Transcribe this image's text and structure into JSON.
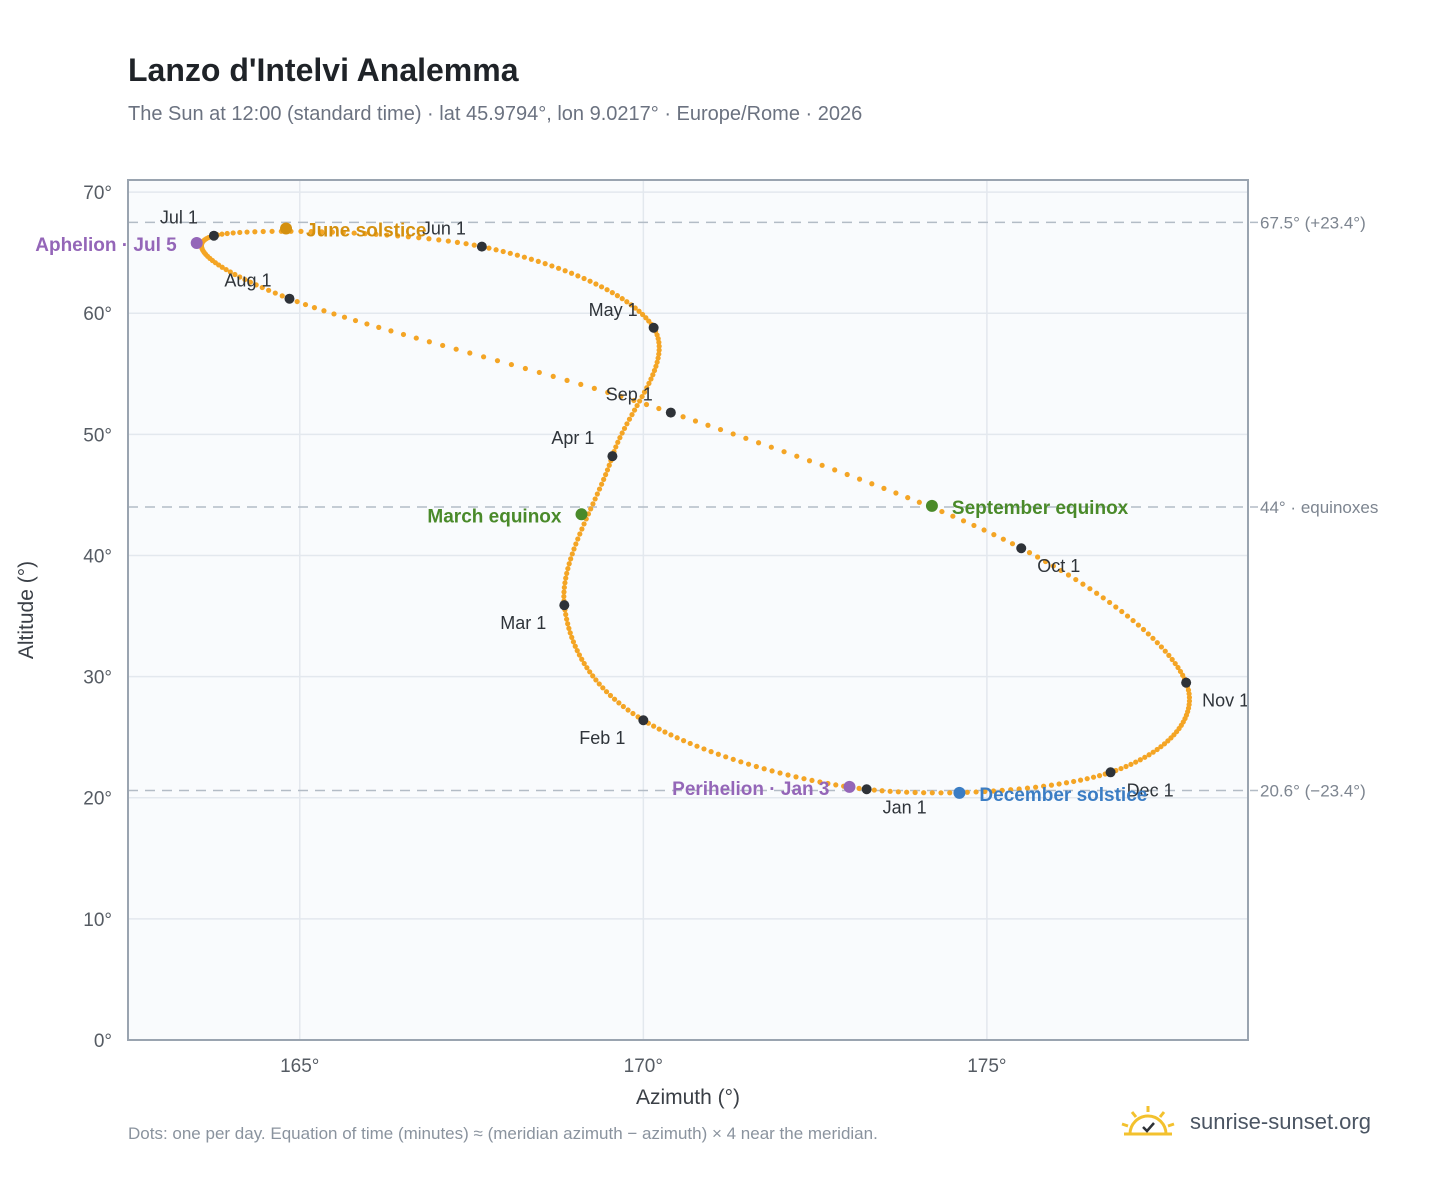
{
  "title": "Lanzo d'Intelvi Analemma",
  "subtitle": "The Sun at 12:00 (standard time) · lat 45.9794°, lon 9.0217° · Europe/Rome · 2026",
  "footnote": "Dots: one per day. Equation of time (minutes) ≈ (meridian azimuth − azimuth) × 4 near the meridian.",
  "brand": {
    "name": "sunrise-sunset.org",
    "icon": "sun-logo-icon",
    "icon_color": "#f3c12e"
  },
  "colors": {
    "path": "#f4a525",
    "month_dot": "#2e3238",
    "june": "#d4900f",
    "equinox": "#4a8a2a",
    "december": "#3b7dc4",
    "orbit": "#9466b8",
    "ref_line": "#b3bcc6",
    "grid": "#e3e8ee",
    "plot_bg": "#f9fbfd",
    "frame": "#9aa4b0"
  },
  "chart_data": {
    "type": "scatter",
    "title": "Lanzo d'Intelvi Analemma",
    "xlabel": "Azimuth (°)",
    "ylabel": "Altitude (°)",
    "xlim": [
      162.5,
      178.8
    ],
    "ylim": [
      0,
      71
    ],
    "x_ticks": [
      165,
      170,
      175
    ],
    "x_tick_labels": [
      "165°",
      "170°",
      "175°"
    ],
    "y_ticks": [
      0,
      10,
      20,
      30,
      40,
      50,
      60,
      70
    ],
    "y_tick_labels": [
      "0°",
      "10°",
      "20°",
      "30°",
      "40°",
      "50°",
      "60°",
      "70°"
    ],
    "grid": true,
    "reference_lines": [
      {
        "altitude": 67.5,
        "label": "67.5° (+23.4°)"
      },
      {
        "altitude": 44.0,
        "label": "44° · equinoxes"
      },
      {
        "altitude": 20.6,
        "label": "20.6° (−23.4°)"
      }
    ],
    "months": [
      {
        "label": "Jan 1",
        "az": 173.25,
        "alt": 20.7
      },
      {
        "label": "Feb 1",
        "az": 170.0,
        "alt": 26.4
      },
      {
        "label": "Mar 1",
        "az": 168.85,
        "alt": 35.9
      },
      {
        "label": "Apr 1",
        "az": 169.55,
        "alt": 48.2
      },
      {
        "label": "May 1",
        "az": 170.15,
        "alt": 58.8
      },
      {
        "label": "Jun 1",
        "az": 167.65,
        "alt": 65.5
      },
      {
        "label": "Jul 1",
        "az": 163.75,
        "alt": 66.4
      },
      {
        "label": "Aug 1",
        "az": 164.85,
        "alt": 61.2
      },
      {
        "label": "Sep 1",
        "az": 170.4,
        "alt": 51.8
      },
      {
        "label": "Oct 1",
        "az": 175.5,
        "alt": 40.6
      },
      {
        "label": "Nov 1",
        "az": 177.9,
        "alt": 29.5
      },
      {
        "label": "Dec 1",
        "az": 176.8,
        "alt": 22.1
      }
    ],
    "events": [
      {
        "label": "June solstice",
        "az": 164.8,
        "alt": 67.0,
        "color": "#d4900f"
      },
      {
        "label": "March equinox",
        "az": 169.1,
        "alt": 43.4,
        "color": "#4a8a2a"
      },
      {
        "label": "September equinox",
        "az": 174.2,
        "alt": 44.1,
        "color": "#4a8a2a"
      },
      {
        "label": "December solstice",
        "az": 174.6,
        "alt": 20.4,
        "color": "#3b7dc4"
      },
      {
        "label": "Aphelion · Jul 5",
        "az": 163.5,
        "alt": 65.8,
        "color": "#9466b8"
      },
      {
        "label": "Perihelion · Jan 3",
        "az": 173.0,
        "alt": 20.9,
        "color": "#9466b8"
      }
    ]
  }
}
